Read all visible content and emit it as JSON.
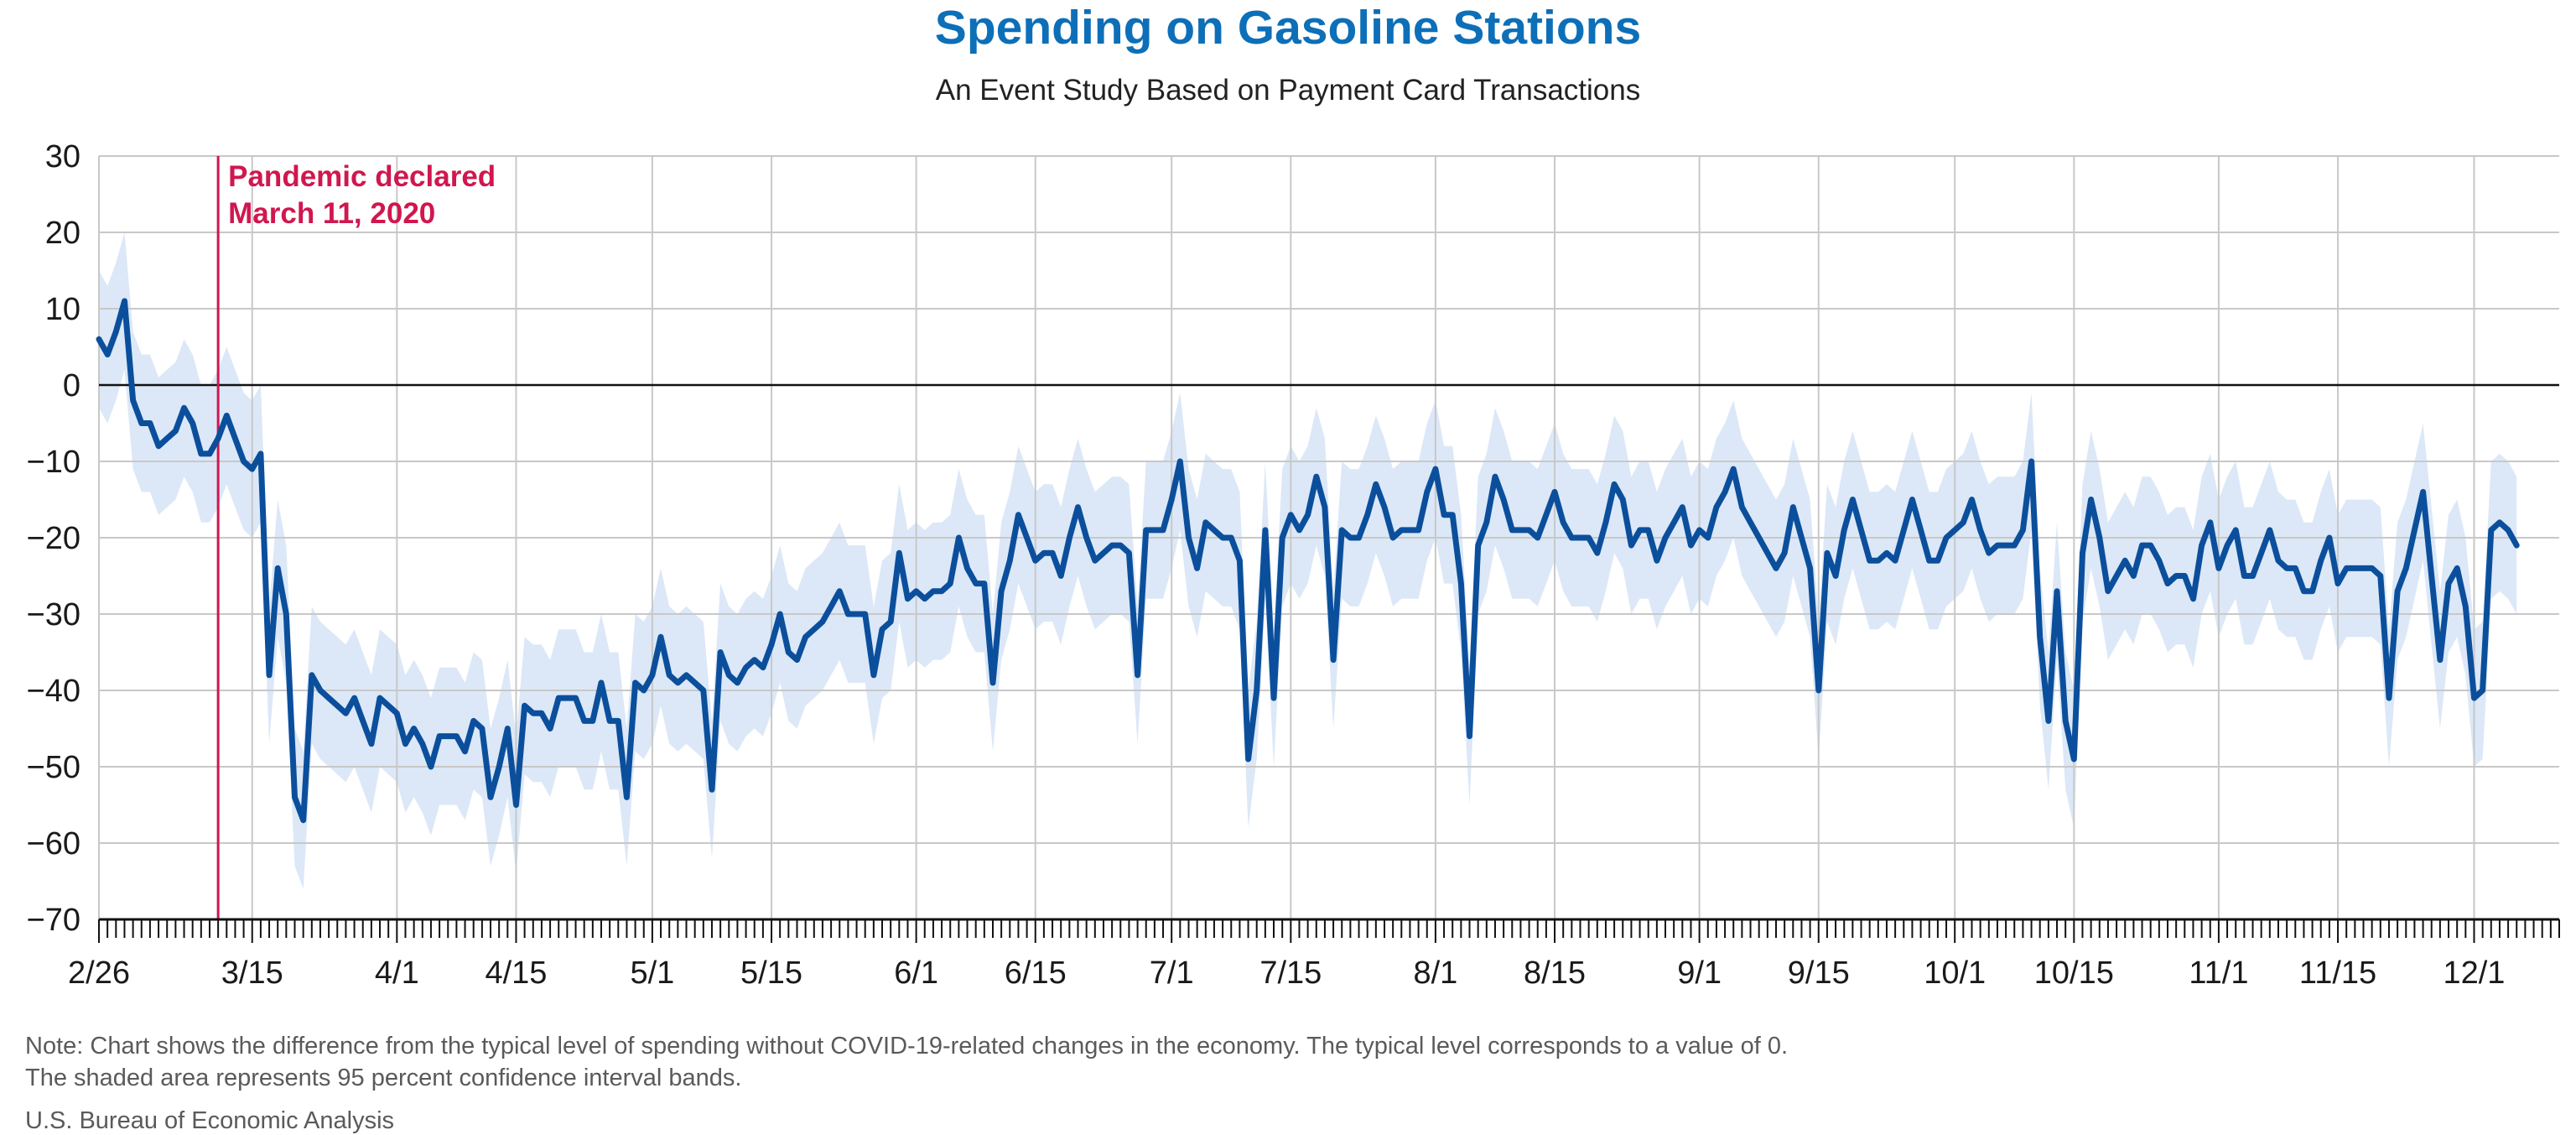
{
  "chart_data": {
    "type": "line",
    "title": "Spending on Gasoline Stations",
    "subtitle": "An Event Study Based on Payment Card Transactions",
    "ylim": [
      -70,
      30
    ],
    "yticks": [
      30,
      20,
      10,
      0,
      -10,
      -20,
      -30,
      -40,
      -50,
      -60,
      -70
    ],
    "x_start_date": "2/26",
    "x_tick_labels": [
      {
        "label": "2/26",
        "day": 0
      },
      {
        "label": "3/15",
        "day": 18
      },
      {
        "label": "4/1",
        "day": 35
      },
      {
        "label": "4/15",
        "day": 49
      },
      {
        "label": "5/1",
        "day": 65
      },
      {
        "label": "5/15",
        "day": 79
      },
      {
        "label": "6/1",
        "day": 96
      },
      {
        "label": "6/15",
        "day": 110
      },
      {
        "label": "7/1",
        "day": 126
      },
      {
        "label": "7/15",
        "day": 140
      },
      {
        "label": "8/1",
        "day": 157
      },
      {
        "label": "8/15",
        "day": 171
      },
      {
        "label": "9/1",
        "day": 188
      },
      {
        "label": "9/15",
        "day": 202
      },
      {
        "label": "10/1",
        "day": 218
      },
      {
        "label": "10/15",
        "day": 232
      },
      {
        "label": "11/1",
        "day": 249
      },
      {
        "label": "11/15",
        "day": 263
      },
      {
        "label": "12/1",
        "day": 279
      }
    ],
    "x_days": 289,
    "grid": true,
    "annotation": {
      "line1": "Pandemic declared",
      "line2": "March 11, 2020",
      "day": 14
    },
    "series": [
      {
        "values": [
          6,
          4,
          7,
          11,
          -2,
          -5,
          -5,
          -8,
          -7,
          -6,
          -3,
          -5,
          -9,
          -9,
          -7,
          -4,
          -7,
          -10,
          -11,
          -9,
          -38,
          -24,
          -30,
          -54,
          -57,
          -38,
          -40,
          -41,
          -42,
          -43,
          -41,
          -44,
          -47,
          -41,
          -42,
          -43,
          -47,
          -45,
          -47,
          -50,
          -46,
          -46,
          -46,
          -48,
          -44,
          -45,
          -54,
          -50,
          -45,
          -55,
          -42,
          -43,
          -43,
          -45,
          -41,
          -41,
          -41,
          -44,
          -44,
          -39,
          -44,
          -44,
          -54,
          -39,
          -40,
          -38,
          -33,
          -38,
          -39,
          -38,
          -39,
          -40,
          -53,
          -35,
          -38,
          -39,
          -37,
          -36,
          -37,
          -34,
          -30,
          -35,
          -36,
          -33,
          -32,
          -31,
          -29,
          -27,
          -30,
          -30,
          -30,
          -38,
          -32,
          -31,
          -22,
          -28,
          -27,
          -28,
          -27,
          -27,
          -26,
          -20,
          -24,
          -26,
          -26,
          -39,
          -27,
          -23,
          -17,
          -20,
          -23,
          -22,
          -22,
          -25,
          -20,
          -16,
          -20,
          -23,
          -22,
          -21,
          -21,
          -22,
          -38,
          -19,
          -19,
          -19,
          -15,
          -10,
          -20,
          -24,
          -18,
          -19,
          -20,
          -20,
          -23,
          -49,
          -40,
          -19,
          -41,
          -20,
          -17,
          -19,
          -17,
          -12,
          -16,
          -36,
          -19,
          -20,
          -20,
          -17,
          -13,
          -16,
          -20,
          -19,
          -19,
          -19,
          -14,
          -11,
          -17,
          -17,
          -26,
          -46,
          -21,
          -18,
          -12,
          -15,
          -19,
          -19,
          -19,
          -20,
          -17,
          -14,
          -18,
          -20,
          -20,
          -20,
          -22,
          -18,
          -13,
          -15,
          -21,
          -19,
          -19,
          -23,
          -20,
          -18,
          -16,
          -21,
          -19,
          -20,
          -16,
          -14,
          -11,
          -16,
          -18,
          -20,
          -22,
          -24,
          -22,
          -16,
          -20,
          -24,
          -40,
          -22,
          -25,
          -19,
          -15,
          -19,
          -23,
          -23,
          -22,
          -23,
          -19,
          -15,
          -19,
          -23,
          -23,
          -20,
          -19,
          -18,
          -15,
          -19,
          -22,
          -21,
          -21,
          -21,
          -19,
          -10,
          -33,
          -44,
          -27,
          -44,
          -49,
          -22,
          -15,
          -20,
          -27,
          -25,
          -23,
          -25,
          -21,
          -21,
          -23,
          -26,
          -25,
          -25,
          -28,
          -21,
          -18,
          -24,
          -21,
          -19,
          -25,
          -25,
          -22,
          -19,
          -23,
          -24,
          -24,
          -27,
          -27,
          -23,
          -20,
          -26,
          -24,
          -24,
          -24,
          -24,
          -25,
          -41,
          -27,
          -24,
          -19,
          -14,
          -25,
          -36,
          -26,
          -24,
          -29,
          -41,
          -40,
          -19,
          -18,
          -19,
          -21
        ]
      }
    ],
    "band_halfwidth": 9
  },
  "note_line1": "Note: Chart shows the difference from the typical level of spending without COVID-19-related changes in the economy. The typical level corresponds to a value of 0.",
  "note_line2": "The shaded area represents 95 percent confidence interval bands.",
  "source": "U.S. Bureau of Economic Analysis",
  "colors": {
    "line": "#0b4f9c",
    "band": "#dce8f7",
    "annotation": "#d0174f",
    "grid": "#c8c8c8",
    "title": "#0d6fb8"
  }
}
